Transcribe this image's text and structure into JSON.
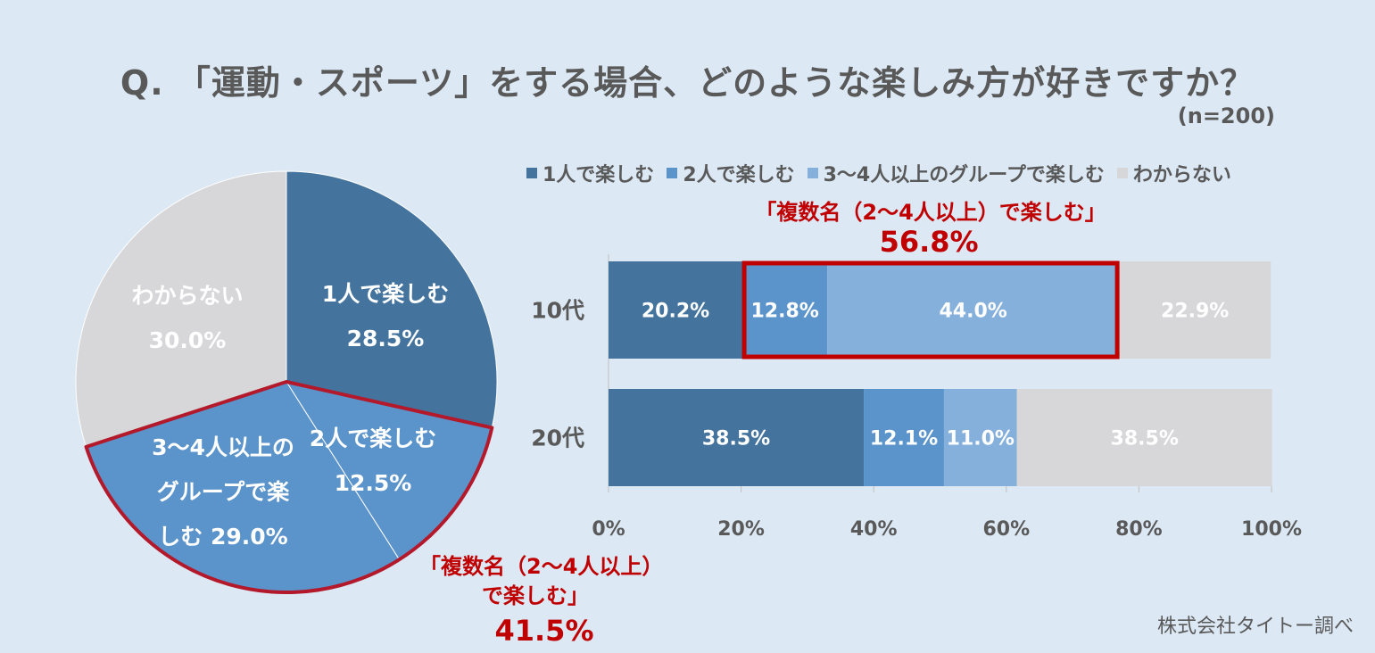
{
  "title": "Q. 「運動・スポーツ」をする場合、どのような楽しみ方が好きですか？",
  "sample_size": "(n=200)",
  "credit": "株式会社タイトー調べ",
  "colors": {
    "solo": "#44739e",
    "pair": "#5b93cb",
    "group": "#85b0dc",
    "unknown": "#d7d6d8",
    "highlight": "#c00000"
  },
  "legend": [
    {
      "label": "1人で楽しむ",
      "color": "#44739e"
    },
    {
      "label": "2人で楽しむ",
      "color": "#5b93cb"
    },
    {
      "label": "3～4人以上のグループで楽しむ",
      "color": "#85b0dc"
    },
    {
      "label": "わからない",
      "color": "#d7d6d8"
    }
  ],
  "chart_data": [
    {
      "type": "pie",
      "title": "",
      "slices": [
        {
          "name": "1人で楽しむ",
          "label_lines": [
            "1人で楽しむ",
            "28.5%"
          ],
          "value": 28.5,
          "color": "#44739e"
        },
        {
          "name": "2人で楽しむ",
          "label_lines": [
            "2人で楽しむ",
            "12.5%"
          ],
          "value": 12.5,
          "color": "#5b93cb"
        },
        {
          "name": "3～4人以上のグループで楽しむ",
          "label_lines": [
            "3～4人以上の",
            "グループで楽",
            "しむ 29.0%"
          ],
          "value": 29.0,
          "color": "#5b93cb"
        },
        {
          "name": "わからない",
          "label_lines": [
            "わからない",
            "30.0%"
          ],
          "value": 30.0,
          "color": "#d7d6d8"
        }
      ],
      "annotation": {
        "lines": [
          "「複数名（2～4人以上）",
          "で楽しむ」"
        ],
        "value_text": "41.5%",
        "value": 41.5,
        "highlight_slices": [
          "2人で楽しむ",
          "3～4人以上のグループで楽しむ"
        ]
      }
    },
    {
      "type": "bar",
      "orientation": "horizontal",
      "stacked": true,
      "categories": [
        "10代",
        "20代"
      ],
      "series": [
        {
          "name": "1人で楽しむ",
          "values": [
            20.2,
            38.5
          ],
          "labels": [
            "20.2%",
            "38.5%"
          ],
          "color": "#44739e"
        },
        {
          "name": "2人で楽しむ",
          "values": [
            12.8,
            12.1
          ],
          "labels": [
            "12.8%",
            "12.1%"
          ],
          "color": "#5b93cb"
        },
        {
          "name": "3～4人以上のグループで楽しむ",
          "values": [
            44.0,
            11.0
          ],
          "labels": [
            "44.0%",
            "11.0%"
          ],
          "color": "#85b0dc"
        },
        {
          "name": "わからない",
          "values": [
            22.9,
            38.5
          ],
          "labels": [
            "22.9%",
            "38.5%"
          ],
          "color": "#d7d6d8"
        }
      ],
      "xlim": [
        0,
        100
      ],
      "xticks": [
        "0%",
        "20%",
        "40%",
        "60%",
        "80%",
        "100%"
      ],
      "xlabel": "",
      "ylabel": "",
      "annotation": {
        "category": "10代",
        "line1": "「複数名（2～4人以上）で楽しむ」",
        "value_text": "56.8%",
        "value": 56.8,
        "highlight_series": [
          "2人で楽しむ",
          "3～4人以上のグループで楽しむ"
        ]
      }
    }
  ]
}
